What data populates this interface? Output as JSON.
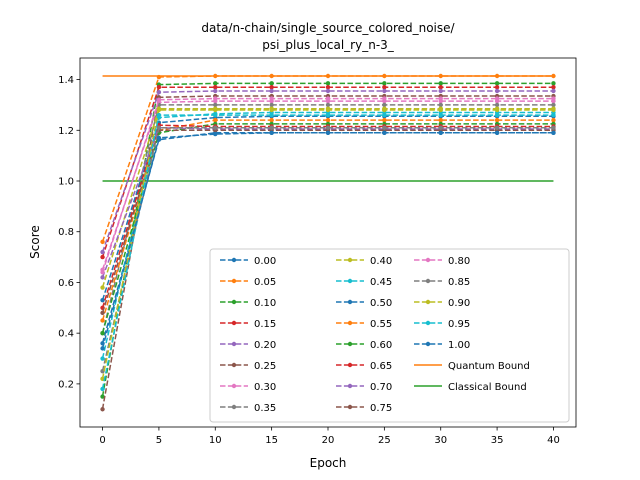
{
  "chart_data": {
    "type": "line",
    "title_lines": [
      "data/n-chain/single_source_colored_noise/",
      "psi_plus_local_ry_n-3_"
    ],
    "xlabel": "Epoch",
    "ylabel": "Score",
    "xlim": [
      -2,
      42
    ],
    "ylim": [
      0.03,
      1.485
    ],
    "xticks": [
      0,
      5,
      10,
      15,
      20,
      25,
      30,
      35,
      40
    ],
    "yticks": [
      0.2,
      0.4,
      0.6,
      0.8,
      1.0,
      1.2,
      1.4
    ],
    "ytick_labels": [
      "0.2",
      "0.4",
      "0.6",
      "0.8",
      "1.0",
      "1.2",
      "1.4"
    ],
    "x": [
      0,
      5,
      10,
      15,
      20,
      25,
      30,
      35,
      40
    ],
    "legend_location": "lower right",
    "legend_columns": 3,
    "series": [
      {
        "name": "0.00",
        "color": "#1f77b4",
        "values": [
          0.36,
          1.163,
          1.19,
          1.19,
          1.19,
          1.19,
          1.19,
          1.19,
          1.19
        ]
      },
      {
        "name": "0.05",
        "color": "#ff7f0e",
        "values": [
          0.76,
          1.41,
          1.414,
          1.414,
          1.414,
          1.414,
          1.414,
          1.414,
          1.414
        ]
      },
      {
        "name": "0.10",
        "color": "#2ca02c",
        "values": [
          0.15,
          1.38,
          1.385,
          1.385,
          1.385,
          1.385,
          1.385,
          1.385,
          1.385
        ]
      },
      {
        "name": "0.15",
        "color": "#d62728",
        "values": [
          0.7,
          1.37,
          1.37,
          1.37,
          1.37,
          1.37,
          1.37,
          1.37,
          1.37
        ]
      },
      {
        "name": "0.20",
        "color": "#9467bd",
        "values": [
          0.72,
          1.35,
          1.355,
          1.355,
          1.355,
          1.355,
          1.355,
          1.355,
          1.355
        ]
      },
      {
        "name": "0.25",
        "color": "#8c564b",
        "values": [
          0.1,
          1.33,
          1.335,
          1.335,
          1.335,
          1.335,
          1.335,
          1.335,
          1.335
        ]
      },
      {
        "name": "0.30",
        "color": "#e377c2",
        "values": [
          0.65,
          1.31,
          1.315,
          1.315,
          1.315,
          1.315,
          1.315,
          1.315,
          1.315
        ]
      },
      {
        "name": "0.35",
        "color": "#7f7f7f",
        "values": [
          0.4,
          1.3,
          1.3,
          1.3,
          1.3,
          1.3,
          1.3,
          1.3,
          1.3
        ]
      },
      {
        "name": "0.40",
        "color": "#bcbd22",
        "values": [
          0.58,
          1.285,
          1.285,
          1.285,
          1.285,
          1.285,
          1.285,
          1.285,
          1.285
        ]
      },
      {
        "name": "0.45",
        "color": "#17becf",
        "values": [
          0.3,
          1.25,
          1.265,
          1.27,
          1.27,
          1.27,
          1.27,
          1.27,
          1.27
        ]
      },
      {
        "name": "0.50",
        "color": "#1f77b4",
        "values": [
          0.53,
          1.23,
          1.25,
          1.255,
          1.255,
          1.255,
          1.255,
          1.255,
          1.255
        ]
      },
      {
        "name": "0.55",
        "color": "#ff7f0e",
        "values": [
          0.45,
          1.2,
          1.24,
          1.24,
          1.24,
          1.24,
          1.24,
          1.24,
          1.24
        ]
      },
      {
        "name": "0.60",
        "color": "#2ca02c",
        "values": [
          0.4,
          1.19,
          1.225,
          1.225,
          1.225,
          1.225,
          1.225,
          1.225,
          1.225
        ]
      },
      {
        "name": "0.65",
        "color": "#d62728",
        "values": [
          0.5,
          1.22,
          1.215,
          1.215,
          1.215,
          1.215,
          1.215,
          1.215,
          1.215
        ]
      },
      {
        "name": "0.70",
        "color": "#9467bd",
        "values": [
          0.62,
          1.21,
          1.205,
          1.205,
          1.205,
          1.205,
          1.205,
          1.205,
          1.205
        ]
      },
      {
        "name": "0.75",
        "color": "#8c564b",
        "values": [
          0.48,
          1.2,
          1.2,
          1.2,
          1.2,
          1.2,
          1.2,
          1.2,
          1.2
        ]
      },
      {
        "name": "0.80",
        "color": "#e377c2",
        "values": [
          0.64,
          1.32,
          1.325,
          1.325,
          1.325,
          1.325,
          1.325,
          1.325,
          1.325
        ]
      },
      {
        "name": "0.85",
        "color": "#7f7f7f",
        "values": [
          0.25,
          1.21,
          1.21,
          1.21,
          1.21,
          1.21,
          1.21,
          1.21,
          1.21
        ]
      },
      {
        "name": "0.90",
        "color": "#bcbd22",
        "values": [
          0.22,
          1.28,
          1.28,
          1.28,
          1.28,
          1.28,
          1.28,
          1.28,
          1.28
        ]
      },
      {
        "name": "0.95",
        "color": "#17becf",
        "values": [
          0.18,
          1.26,
          1.26,
          1.26,
          1.26,
          1.26,
          1.26,
          1.26,
          1.26
        ]
      },
      {
        "name": "1.00",
        "color": "#1f77b4",
        "values": [
          0.34,
          1.17,
          1.185,
          1.19,
          1.19,
          1.19,
          1.19,
          1.19,
          1.19
        ]
      }
    ],
    "reference_lines": [
      {
        "name": "Quantum Bound",
        "color": "#ff7f0e",
        "value": 1.414
      },
      {
        "name": "Classical Bound",
        "color": "#2ca02c",
        "value": 1.0
      }
    ]
  }
}
